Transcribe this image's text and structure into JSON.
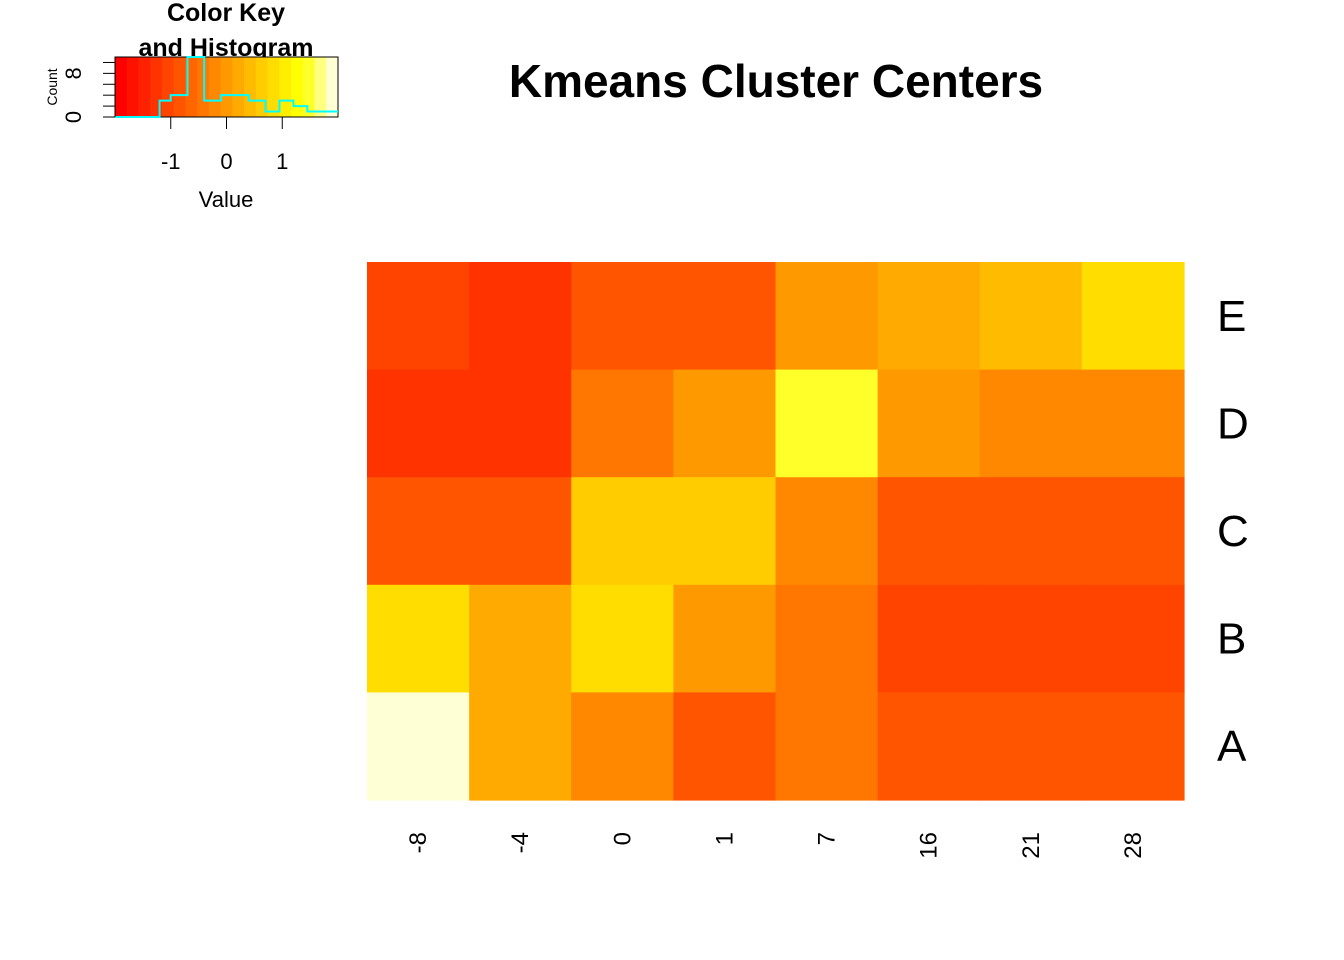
{
  "chart_data": {
    "type": "heatmap",
    "title": "Kmeans Cluster Centers",
    "x_categories": [
      "-8",
      "-4",
      "0",
      "1",
      "7",
      "16",
      "21",
      "28"
    ],
    "y_categories": [
      "E",
      "D",
      "C",
      "B",
      "A"
    ],
    "values": [
      [
        -1.0,
        -1.3,
        -0.8,
        -0.8,
        0.1,
        0.3,
        0.5,
        0.8
      ],
      [
        -1.3,
        -1.3,
        -0.5,
        0.1,
        1.5,
        0.1,
        -0.2,
        -0.2
      ],
      [
        -0.8,
        -0.8,
        0.7,
        0.7,
        -0.2,
        -0.8,
        -0.8,
        -0.8
      ],
      [
        0.8,
        0.3,
        0.8,
        0.1,
        -0.5,
        -1.0,
        -1.0,
        -1.0
      ],
      [
        1.9,
        0.3,
        -0.2,
        -0.8,
        -0.5,
        -0.8,
        -0.8,
        -0.8
      ]
    ],
    "color_scale": [
      "#FF0000",
      "#FF1100",
      "#FF2200",
      "#FF3300",
      "#FF4400",
      "#FF5500",
      "#FF6600",
      "#FF7700",
      "#FF8800",
      "#FF9900",
      "#FFAA00",
      "#FFBB00",
      "#FFCC00",
      "#FFDD00",
      "#FFEE00",
      "#FFFF00",
      "#FFFF2A",
      "#FFFF80",
      "#FFFFD5"
    ],
    "color_key": {
      "title": "Color Key\nand Histogram",
      "xlabel": "Value",
      "ylabel": "Count",
      "x_range": [
        -2,
        2
      ],
      "x_ticks": [
        "-1",
        "0",
        "1"
      ],
      "x_tick_values": [
        -1,
        0,
        1
      ],
      "y_ticks": [
        "0",
        "8"
      ],
      "y_range": [
        0,
        11
      ],
      "histogram_color": "#00FFFF",
      "histogram_bins": [
        {
          "x0": -2.0,
          "x1": -1.2,
          "count": 0
        },
        {
          "x0": -1.2,
          "x1": -1.0,
          "count": 3
        },
        {
          "x0": -1.0,
          "x1": -0.7,
          "count": 4
        },
        {
          "x0": -0.7,
          "x1": -0.4,
          "count": 11
        },
        {
          "x0": -0.4,
          "x1": -0.1,
          "count": 3
        },
        {
          "x0": -0.1,
          "x1": 0.4,
          "count": 4
        },
        {
          "x0": 0.4,
          "x1": 0.7,
          "count": 3
        },
        {
          "x0": 0.7,
          "x1": 0.95,
          "count": 1
        },
        {
          "x0": 0.95,
          "x1": 1.2,
          "count": 3
        },
        {
          "x0": 1.2,
          "x1": 1.45,
          "count": 2
        },
        {
          "x0": 1.45,
          "x1": 2.0,
          "count": 1
        }
      ]
    }
  }
}
